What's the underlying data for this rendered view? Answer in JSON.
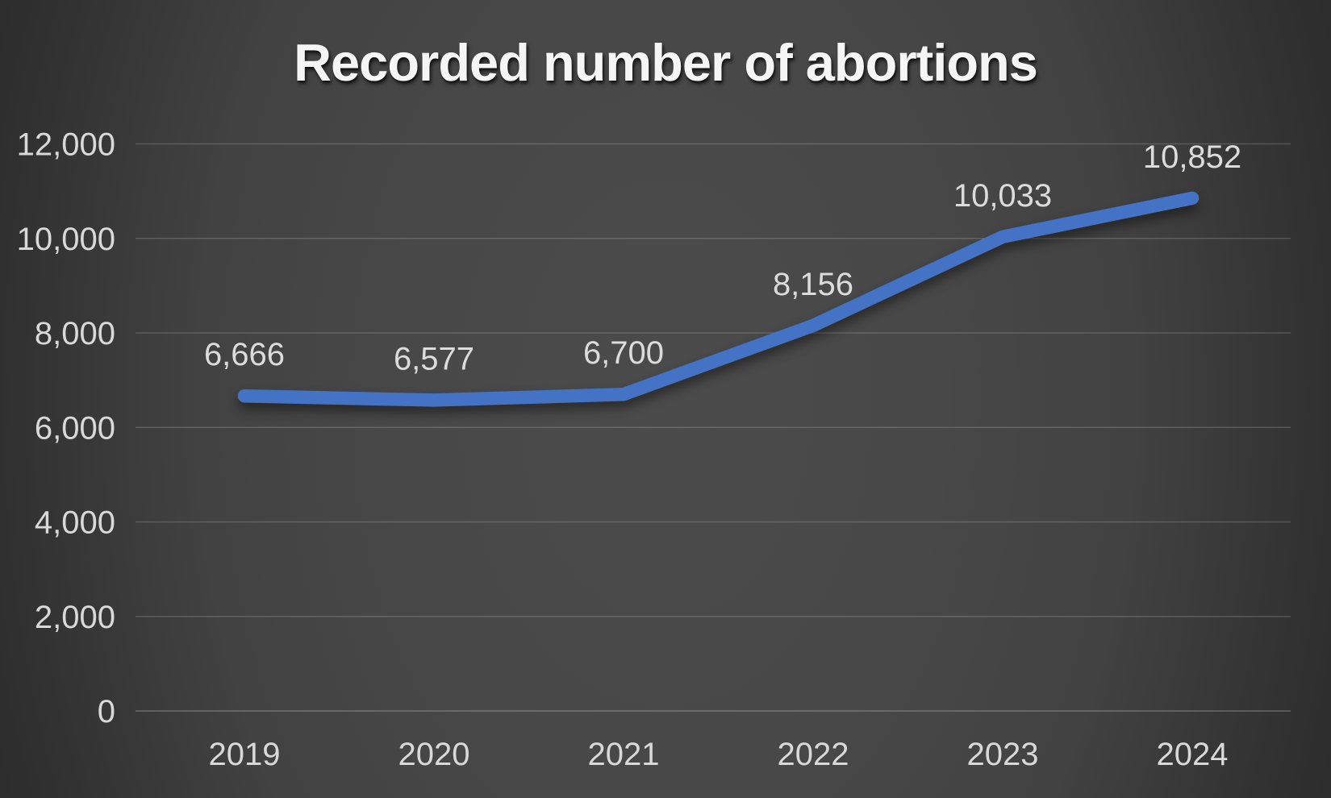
{
  "chart_data": {
    "type": "line",
    "title": "Recorded number of abortions",
    "categories": [
      "2019",
      "2020",
      "2021",
      "2022",
      "2023",
      "2024"
    ],
    "series": [
      {
        "name": "Recorded number of abortions",
        "values": [
          6666,
          6577,
          6700,
          8156,
          10033,
          10852
        ]
      }
    ],
    "data_labels": [
      "6,666",
      "6,577",
      "6,700",
      "8,156",
      "10,033",
      "10,852"
    ],
    "xlabel": "",
    "ylabel": "",
    "ylim": [
      0,
      12000
    ],
    "y_tick_interval": 2000,
    "y_ticks": [
      {
        "value": 12000,
        "label": "12,000"
      },
      {
        "value": 10000,
        "label": "10,000"
      },
      {
        "value": 8000,
        "label": "8,000"
      },
      {
        "value": 6000,
        "label": "6,000"
      },
      {
        "value": 4000,
        "label": "4,000"
      },
      {
        "value": 2000,
        "label": "2,000"
      },
      {
        "value": 0,
        "label": "0"
      }
    ],
    "grid": true,
    "legend_position": "none",
    "colors": {
      "line": "#4472C4",
      "title_text": "#f5f5f5",
      "tick_text": "#d9d9d9",
      "data_label_text": "#dcdcdc",
      "background_center": "#4b4b4b",
      "background_edge": "#242424"
    }
  }
}
